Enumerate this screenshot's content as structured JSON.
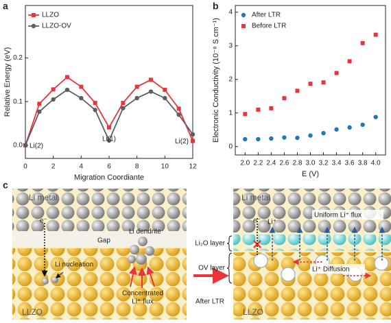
{
  "chart_data": [
    {
      "type": "line",
      "panel": "a",
      "x": [
        0,
        1,
        2,
        3,
        4,
        5,
        6,
        7,
        8,
        9,
        10,
        11,
        12
      ],
      "series": [
        {
          "name": "LLZO",
          "color": "#e8343a",
          "marker": "square",
          "values": [
            0,
            0.095,
            0.128,
            0.156,
            0.134,
            0.097,
            0.041,
            0.097,
            0.134,
            0.15,
            0.127,
            0.084,
            0.01
          ]
        },
        {
          "name": "LLZO-OV",
          "color": "#5e5e5e",
          "marker": "circle",
          "values": [
            0,
            0.077,
            0.105,
            0.127,
            0.108,
            0.081,
            0.011,
            0.085,
            0.108,
            0.123,
            0.108,
            0.07,
            0.025
          ]
        }
      ],
      "annotations": [
        "Li(2)",
        "Li(1)",
        "Li(2)"
      ],
      "xlabel": "Migration Coordiante",
      "ylabel": "Relative Energy (eV)",
      "xlim": [
        0,
        12
      ],
      "ylim": [
        -0.03,
        0.32
      ],
      "xticks": [
        0,
        2,
        4,
        6,
        8,
        10,
        12
      ],
      "yticks": [
        {
          "value": 0,
          "label": "0.0"
        },
        0.1,
        0.2
      ],
      "legend": "upper-left"
    },
    {
      "type": "scatter",
      "panel": "b",
      "x": [
        2.0,
        2.2,
        2.4,
        2.6,
        2.8,
        3.0,
        3.2,
        3.4,
        3.6,
        3.8,
        4.0
      ],
      "series": [
        {
          "name": "After LTR",
          "color": "#1f77b4",
          "marker": "circle",
          "values": [
            0.22,
            0.22,
            0.24,
            0.27,
            0.26,
            0.33,
            0.4,
            0.51,
            0.57,
            0.65,
            0.88
          ]
        },
        {
          "name": "Before LTR",
          "color": "#e8343a",
          "marker": "square",
          "values": [
            0.97,
            1.1,
            1.14,
            1.44,
            1.66,
            1.87,
            1.91,
            2.19,
            2.54,
            3.08,
            3.33
          ]
        }
      ],
      "xlabel": "E (V)",
      "ylabel": "Electronic Conductivity (10⁻⁸ S cm⁻¹)",
      "xlim": [
        1.85,
        4.15
      ],
      "ylim": [
        -0.25,
        4.2
      ],
      "xticks": [
        {
          "value": 2,
          "label": "2.0"
        },
        2.2,
        2.4,
        2.6,
        2.8,
        {
          "value": 3,
          "label": "3.0"
        },
        3.2,
        3.4,
        3.6,
        3.8,
        {
          "value": 4,
          "label": "4.0"
        }
      ],
      "yticks": [
        0,
        1,
        2,
        3,
        4
      ],
      "legend": "upper-left"
    }
  ],
  "diagram": {
    "panel": "c",
    "left": {
      "top": "Li metal",
      "electron": "e⁻",
      "gap": "Gap",
      "dendrite": "Li dendrite",
      "nucleation": "Li nucleation",
      "flux": [
        "Concentrated",
        "Li⁺ flux"
      ],
      "bottom": "LLZO"
    },
    "transition": "After LTR",
    "right": {
      "top": "Li metal",
      "electron": "e⁻",
      "ion": "Li⁺",
      "flux": "Uniform Li⁺ flux",
      "layer1": "Li₂O layer",
      "layer2": "OV layer",
      "diffusion": "Li⁺ Diffusion",
      "bottom": "LLZO"
    }
  }
}
